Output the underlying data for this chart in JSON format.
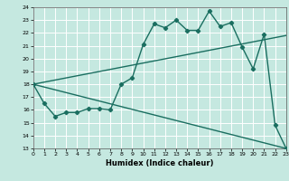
{
  "title": "",
  "xlabel": "Humidex (Indice chaleur)",
  "ylabel": "",
  "background_color": "#c5e8e0",
  "grid_color": "#ffffff",
  "line_color": "#1a6e60",
  "ylim": [
    13,
    24
  ],
  "xlim": [
    0,
    23
  ],
  "yticks": [
    13,
    14,
    15,
    16,
    17,
    18,
    19,
    20,
    21,
    22,
    23,
    24
  ],
  "xticks": [
    0,
    1,
    2,
    3,
    4,
    5,
    6,
    7,
    8,
    9,
    10,
    11,
    12,
    13,
    14,
    15,
    16,
    17,
    18,
    19,
    20,
    21,
    22,
    23
  ],
  "series_main": {
    "x": [
      0,
      1,
      2,
      3,
      4,
      5,
      6,
      7,
      8,
      9,
      10,
      11,
      12,
      13,
      14,
      15,
      16,
      17,
      18,
      19,
      20,
      21,
      22,
      23
    ],
    "y": [
      18.0,
      16.5,
      15.5,
      15.8,
      15.8,
      16.1,
      16.1,
      16.0,
      18.0,
      18.5,
      21.1,
      22.7,
      22.4,
      23.0,
      22.2,
      22.2,
      23.7,
      22.5,
      22.8,
      20.9,
      19.2,
      21.9,
      14.8,
      13.0
    ]
  },
  "series_upper": {
    "x": [
      0,
      23
    ],
    "y": [
      18.0,
      21.8
    ]
  },
  "series_lower": {
    "x": [
      0,
      23
    ],
    "y": [
      18.0,
      13.0
    ]
  }
}
